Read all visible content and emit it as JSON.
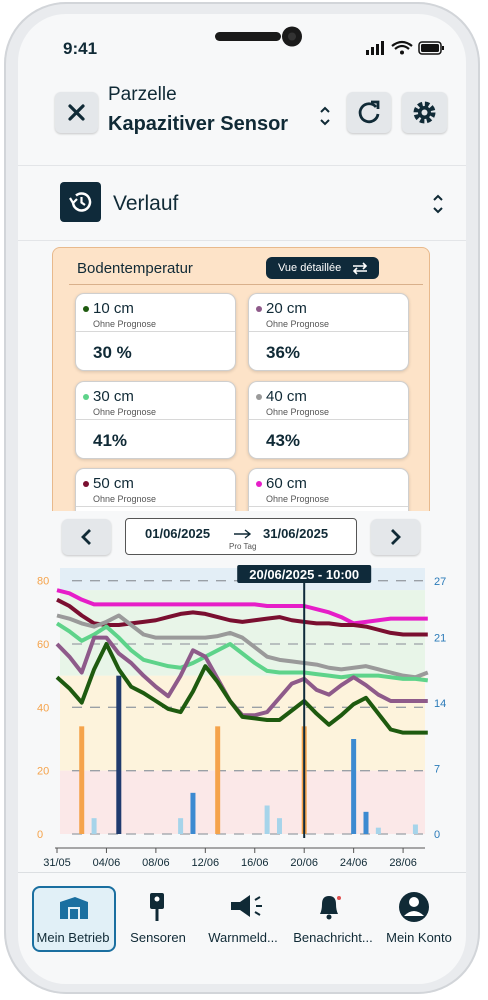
{
  "status": {
    "time": "9:41"
  },
  "header": {
    "title": "Parzelle",
    "subtitle": "Kapazitiver Sensor"
  },
  "section": {
    "title": "Verlauf"
  },
  "card": {
    "title": "Bodentemperatur",
    "button": "Vue détaillée",
    "sensors": [
      {
        "label": "10 cm",
        "sub": "Ohne Prognose",
        "value": "30 %",
        "color": "#1e5a0f"
      },
      {
        "label": "20 cm",
        "sub": "Ohne Prognose",
        "value": "36%",
        "color": "#8e5a8a"
      },
      {
        "label": "30 cm",
        "sub": "Ohne Prognose",
        "value": "41%",
        "color": "#5ed38a"
      },
      {
        "label": "40 cm",
        "sub": "Ohne Prognose",
        "value": "43%",
        "color": "#9a9a9a"
      },
      {
        "label": "50 cm",
        "sub": "Ohne Prognose",
        "color": "#7a0f30"
      },
      {
        "label": "60 cm",
        "sub": "Ohne Prognose",
        "color": "#e61ec8"
      }
    ]
  },
  "range": {
    "start": "01/06/2025",
    "end": "31/06/2025",
    "sub": "Pro Tag"
  },
  "chart_data": {
    "type": "line",
    "categories": [
      "31/05",
      null,
      null,
      null,
      "04/06",
      null,
      null,
      null,
      "08/06",
      null,
      null,
      null,
      "12/06",
      null,
      null,
      null,
      "16/06",
      null,
      null,
      null,
      "20/06",
      null,
      null,
      null,
      "24/06",
      null,
      null,
      null,
      "28/06",
      null,
      null
    ],
    "ylim": [
      0,
      84
    ],
    "yticks": [
      0,
      20,
      40,
      60,
      80
    ],
    "y2lim": [
      0,
      28.4
    ],
    "y2ticks": [
      0,
      7,
      14,
      21,
      27
    ],
    "ytick_color": "#f5a34b",
    "y2tick_color": "#2b7bb9",
    "grid": true,
    "zones": [
      {
        "from": 77,
        "to": 84,
        "color": "#e3eef6"
      },
      {
        "from": 50,
        "to": 77,
        "color": "#e8f5e8"
      },
      {
        "from": 20,
        "to": 50,
        "color": "#fdf3dc"
      },
      {
        "from": 0,
        "to": 20,
        "color": "#fbe8e8"
      }
    ],
    "cursor": {
      "index": 20,
      "label": "20/06/2025 - 10:00"
    },
    "series": [
      {
        "type": "bar",
        "color": "#f5a34b",
        "values": [
          null,
          null,
          34,
          null,
          null,
          null,
          null,
          null,
          null,
          null,
          null,
          null,
          null,
          34,
          null,
          null,
          null,
          null,
          null,
          null,
          34,
          null,
          null,
          null,
          null,
          null,
          null,
          null,
          null,
          null,
          null
        ]
      },
      {
        "type": "bar",
        "color": "#1f3a6e",
        "values": [
          null,
          null,
          null,
          null,
          null,
          50,
          null,
          null,
          null,
          null,
          null,
          null,
          null,
          null,
          null,
          null,
          null,
          null,
          null,
          null,
          null,
          null,
          null,
          null,
          null,
          null,
          null,
          null,
          null,
          null,
          null
        ]
      },
      {
        "type": "bar",
        "color": "#3c8ad1",
        "values": [
          null,
          null,
          null,
          null,
          null,
          null,
          null,
          null,
          null,
          null,
          null,
          13,
          null,
          null,
          null,
          null,
          null,
          null,
          null,
          null,
          null,
          null,
          null,
          null,
          30,
          7,
          null,
          null,
          null,
          null,
          null
        ]
      },
      {
        "type": "bar",
        "color": "#a6d4ea",
        "values": [
          null,
          null,
          null,
          5,
          null,
          null,
          null,
          null,
          null,
          null,
          5,
          null,
          null,
          null,
          null,
          null,
          null,
          9,
          5,
          null,
          null,
          null,
          null,
          null,
          null,
          null,
          2,
          null,
          null,
          3,
          null
        ]
      },
      {
        "type": "line",
        "color": "#e61ec8",
        "values": [
          77,
          76,
          74,
          72.5,
          72.5,
          72.5,
          72.5,
          72.5,
          72.5,
          72.5,
          72.5,
          72.5,
          72.5,
          72.5,
          72.5,
          72.5,
          72.5,
          72,
          72,
          72,
          72,
          71,
          70,
          68.5,
          66.5,
          67,
          67.5,
          68,
          68,
          68,
          68
        ]
      },
      {
        "type": "line",
        "color": "#7a0f30",
        "values": [
          74,
          72,
          69,
          66.5,
          66,
          66,
          66.5,
          67,
          67.5,
          68.5,
          69.5,
          70,
          69.5,
          68.5,
          67.5,
          67,
          67.5,
          68,
          68.5,
          67.5,
          67,
          66.5,
          66.5,
          66,
          66,
          65.5,
          64.5,
          63.5,
          63,
          63,
          63
        ]
      },
      {
        "type": "line",
        "color": "#9a9a9a",
        "values": [
          69,
          68,
          66.5,
          65.5,
          67,
          69,
          66,
          63,
          62,
          62,
          62,
          62,
          62,
          62.5,
          63.5,
          62,
          59,
          56,
          55,
          54.5,
          54,
          53.5,
          52.5,
          52,
          52.5,
          53,
          52,
          51,
          50,
          49.5,
          51
        ]
      },
      {
        "type": "line",
        "color": "#5ed38a",
        "values": [
          66.5,
          64,
          61,
          63,
          65.5,
          62,
          58,
          55,
          54,
          53,
          52.5,
          54,
          56,
          58,
          60,
          57,
          54,
          51.5,
          51,
          51,
          51,
          50.5,
          50,
          49.5,
          50,
          50,
          50,
          49.5,
          49,
          49,
          48.5
        ]
      },
      {
        "type": "line",
        "color": "#8e5a8a",
        "values": [
          60,
          56,
          51,
          62,
          62,
          57,
          54,
          50,
          46.5,
          43.5,
          50,
          58,
          56,
          49,
          42,
          37.5,
          37.5,
          38.5,
          43,
          47.5,
          49,
          45.5,
          44,
          47,
          49.5,
          47,
          44,
          42,
          42,
          42,
          42
        ]
      },
      {
        "type": "line",
        "color": "#1e5a0f",
        "values": [
          49.5,
          46,
          41.5,
          52,
          60,
          52,
          46.5,
          44.5,
          42,
          39.5,
          38.5,
          45,
          53,
          48,
          42,
          37,
          36.5,
          36,
          36,
          39,
          42,
          38,
          34.5,
          37.5,
          41,
          43,
          38,
          33,
          32,
          32,
          32
        ]
      }
    ]
  },
  "nav": {
    "items": [
      "Mein Betrieb",
      "Sensoren",
      "Warnmeld...",
      "Benachricht...",
      "Mein Konto"
    ],
    "active": 0
  }
}
